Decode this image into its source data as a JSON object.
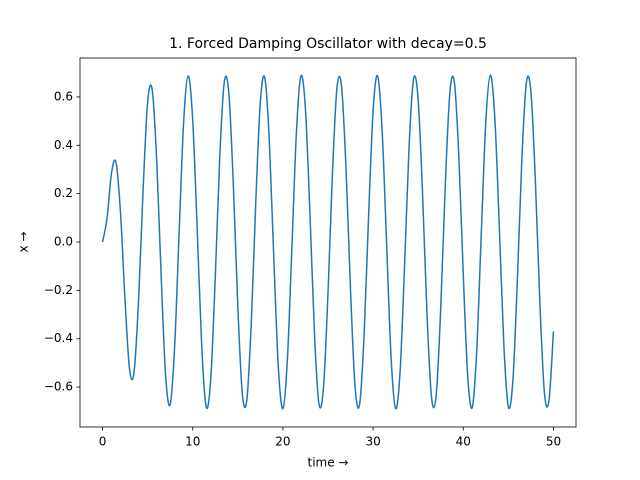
{
  "chart_data": {
    "type": "line",
    "title": "1. Forced Damping Oscillator with decay=0.5",
    "xlabel": "time →",
    "ylabel": "x →",
    "color": "#1f77b4",
    "x": [
      0,
      0.5,
      1,
      1.5,
      2,
      2.5,
      3,
      3.5,
      4,
      4.5,
      5,
      5.5,
      6,
      6.5,
      7,
      7.5,
      8,
      8.5,
      9,
      9.5,
      10,
      10.5,
      11,
      11.5,
      12,
      12.5,
      13,
      13.5,
      14,
      14.5,
      15,
      15.5,
      16,
      16.5,
      17,
      17.5,
      18,
      18.5,
      19,
      19.5,
      20,
      20.5,
      21,
      21.5,
      22,
      22.5,
      23,
      23.5,
      24,
      24.5,
      25,
      25.5,
      26,
      26.5,
      27,
      27.5,
      28,
      28.5,
      29,
      29.5,
      30,
      30.5,
      31,
      31.5,
      32,
      32.5,
      33,
      33.5,
      34,
      34.5,
      35,
      35.5,
      36,
      36.5,
      37,
      37.5,
      38,
      38.5,
      39,
      39.5,
      40,
      40.5,
      41,
      41.5,
      42,
      42.5,
      43,
      43.5,
      44,
      44.5,
      45,
      45.5,
      46,
      46.5,
      47,
      47.5,
      48,
      48.5,
      49,
      49.5,
      50
    ],
    "values": [
      0,
      0.099,
      0.287,
      0.328,
      0.116,
      -0.245,
      -0.528,
      -0.536,
      -0.236,
      0.219,
      0.577,
      0.63,
      0.341,
      -0.141,
      -0.554,
      -0.672,
      -0.428,
      0.048,
      0.501,
      0.687,
      0.503,
      0.049,
      -0.433,
      -0.683,
      -0.566,
      -0.146,
      0.353,
      0.662,
      0.617,
      0.239,
      -0.266,
      -0.628,
      -0.653,
      -0.328,
      0.173,
      0.582,
      0.678,
      0.411,
      -0.077,
      -0.522,
      -0.689,
      -0.484,
      -0.02,
      0.455,
      0.687,
      0.549,
      0.117,
      -0.379,
      -0.67,
      -0.602,
      -0.212,
      0.293,
      0.64,
      0.644,
      0.303,
      -0.201,
      -0.597,
      -0.673,
      -0.386,
      0.106,
      0.542,
      0.687,
      0.463,
      -0.009,
      -0.48,
      -0.689,
      -0.531,
      -0.088,
      0.402,
      0.676,
      0.588,
      0.184,
      -0.319,
      -0.65,
      -0.633,
      -0.275,
      0.23,
      0.611,
      0.665,
      0.362,
      -0.135,
      -0.56,
      -0.684,
      -0.441,
      0.039,
      0.498,
      0.69,
      0.512,
      0.059,
      -0.426,
      -0.682,
      -0.573,
      -0.155,
      0.345,
      0.66,
      0.621,
      0.248,
      -0.257,
      -0.624,
      -0.656,
      -0.37
    ],
    "xlim": [
      -2.5,
      52.5
    ],
    "xticks": [
      0,
      10,
      20,
      30,
      40,
      50
    ],
    "ylim": [
      -0.765,
      0.761
    ],
    "yticks": [
      {
        "value": -0.6,
        "label": "−0.6"
      },
      {
        "value": -0.4,
        "label": "−0.4"
      },
      {
        "value": -0.2,
        "label": "−0.2"
      },
      {
        "value": 0,
        "label": "0.0"
      },
      {
        "value": 0.2,
        "label": "0.2"
      },
      {
        "value": 0.4,
        "label": "0.4"
      },
      {
        "value": 0.6,
        "label": "0.6"
      }
    ]
  }
}
